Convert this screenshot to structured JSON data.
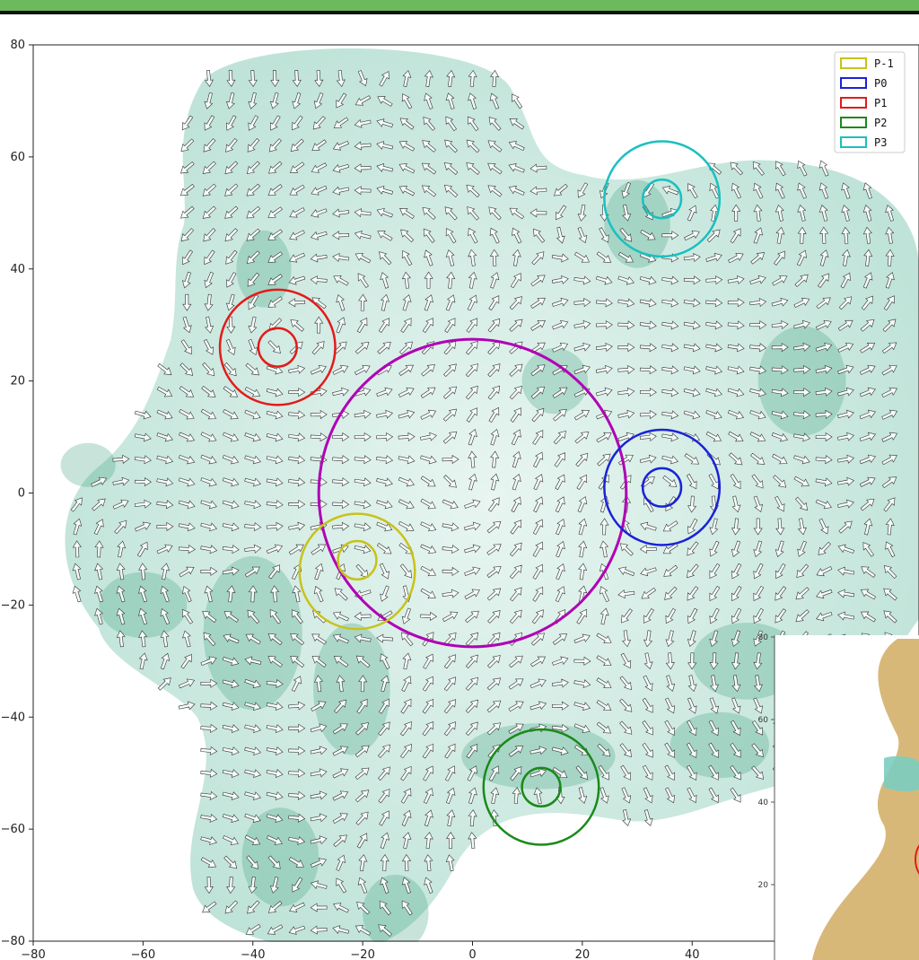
{
  "chart_data": {
    "type": "scatter",
    "title": "",
    "xlabel": "",
    "ylabel": "",
    "xlim": [
      -80,
      80
    ],
    "ylim": [
      -80,
      80
    ],
    "x_ticks": [
      "−80",
      "−60",
      "−40",
      "−20",
      "0",
      "20",
      "40"
    ],
    "y_ticks": [
      "80",
      "60",
      "40",
      "20",
      "0",
      "−20",
      "−40",
      "−60",
      "−80"
    ],
    "background_field": "vector field of arrows over teal shaded density",
    "field_color": "#3a9f7a",
    "big_circle": {
      "center": [
        0,
        0
      ],
      "radius": 28,
      "color": "#b000b5"
    },
    "series": [
      {
        "name": "P-1",
        "color": "#c8c21a",
        "center": [
          -21,
          -14
        ],
        "inner_radius": 3.5,
        "outer_radius": 10.5,
        "inner_offset": [
          0,
          2
        ]
      },
      {
        "name": "P0",
        "color": "#1a22d8",
        "center": [
          34.5,
          1
        ],
        "inner_radius": 3.5,
        "outer_radius": 10.5
      },
      {
        "name": "P1",
        "color": "#e31a1a",
        "center": [
          -35.5,
          26
        ],
        "inner_radius": 3.5,
        "outer_radius": 10.5
      },
      {
        "name": "P2",
        "color": "#1a8a1a",
        "center": [
          12.5,
          -52.5
        ],
        "inner_radius": 3.5,
        "outer_radius": 10.5
      },
      {
        "name": "P3",
        "color": "#1ac0c0",
        "center": [
          34.5,
          52.5
        ],
        "inner_radius": 3.5,
        "outer_radius": 10.5
      }
    ],
    "legend_position": "top-right",
    "inset": {
      "y_ticks": [
        "80",
        "60",
        "40",
        "20"
      ],
      "colors": {
        "warm": "#d8b878",
        "cool": "#7ccdc0",
        "circle": "#e31a1a"
      }
    }
  }
}
